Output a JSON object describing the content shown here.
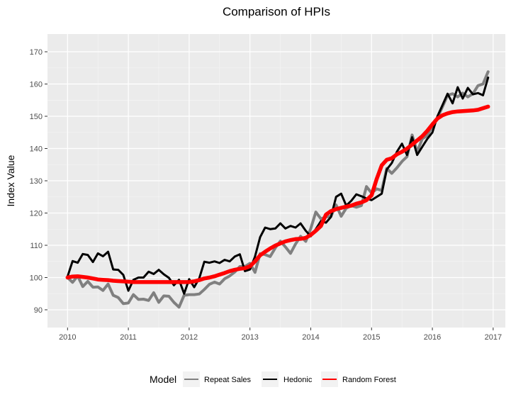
{
  "chart_data": {
    "type": "line",
    "title": "Comparison of HPIs",
    "xlabel": "",
    "ylabel": "Index Value",
    "xlim": [
      2009.67,
      2017.2
    ],
    "ylim": [
      84.5,
      175.5
    ],
    "x_ticks": [
      2010,
      2011,
      2012,
      2013,
      2014,
      2015,
      2016,
      2017
    ],
    "y_ticks": [
      90,
      100,
      110,
      120,
      130,
      140,
      150,
      160,
      170
    ],
    "grid": true,
    "legend": {
      "title": "Model",
      "position": "bottom"
    },
    "series": [
      {
        "name": "Repeat Sales",
        "color": "#808080",
        "x": [
          2010,
          2010.083,
          2010.167,
          2010.25,
          2010.333,
          2010.417,
          2010.5,
          2010.583,
          2010.667,
          2010.75,
          2010.833,
          2010.917,
          2011,
          2011.083,
          2011.167,
          2011.25,
          2011.333,
          2011.417,
          2011.5,
          2011.583,
          2011.667,
          2011.75,
          2011.833,
          2011.917,
          2012,
          2012.083,
          2012.167,
          2012.25,
          2012.333,
          2012.417,
          2012.5,
          2012.583,
          2012.667,
          2012.75,
          2012.833,
          2012.917,
          2013,
          2013.083,
          2013.167,
          2013.25,
          2013.333,
          2013.417,
          2013.5,
          2013.583,
          2013.667,
          2013.75,
          2013.833,
          2013.917,
          2014,
          2014.083,
          2014.167,
          2014.25,
          2014.333,
          2014.417,
          2014.5,
          2014.583,
          2014.667,
          2014.75,
          2014.833,
          2014.917,
          2015,
          2015.083,
          2015.167,
          2015.25,
          2015.333,
          2015.417,
          2015.5,
          2015.583,
          2015.667,
          2015.75,
          2015.833,
          2015.917,
          2016,
          2016.083,
          2016.167,
          2016.25,
          2016.333,
          2016.417,
          2016.5,
          2016.583,
          2016.667,
          2016.75,
          2016.833,
          2016.917
        ],
        "values": [
          100,
          98.5,
          100.5,
          97.2,
          98.8,
          97.0,
          97.1,
          96.0,
          98.0,
          94.5,
          93.8,
          91.9,
          92.1,
          94.7,
          93.2,
          93.3,
          92.9,
          95.3,
          92.3,
          94.3,
          94.2,
          92.3,
          90.8,
          94.5,
          94.7,
          94.7,
          94.9,
          96.3,
          97.9,
          98.6,
          98.0,
          99.6,
          100.5,
          101.7,
          103.4,
          103.4,
          104.4,
          101.6,
          107.4,
          107.1,
          106.5,
          109.2,
          111.3,
          109.5,
          107.5,
          110.4,
          112.8,
          111.2,
          115.2,
          120.3,
          118.2,
          118.8,
          119.0,
          122.5,
          119.0,
          121.5,
          122.3,
          121.8,
          122.3,
          128.2,
          126.2,
          127.5,
          127.0,
          133.8,
          132.3,
          134.0,
          136.0,
          137.5,
          144.2,
          139.0,
          143.0,
          144.0,
          147.0,
          149.5,
          153.0,
          156.5,
          157.0,
          156.0,
          157.2,
          156.0,
          157.0,
          159.5,
          160.0,
          163.8
        ]
      },
      {
        "name": "Hedonic",
        "color": "#000000",
        "x": [
          2010,
          2010.083,
          2010.167,
          2010.25,
          2010.333,
          2010.417,
          2010.5,
          2010.583,
          2010.667,
          2010.75,
          2010.833,
          2010.917,
          2011,
          2011.083,
          2011.167,
          2011.25,
          2011.333,
          2011.417,
          2011.5,
          2011.583,
          2011.667,
          2011.75,
          2011.833,
          2011.917,
          2012,
          2012.083,
          2012.167,
          2012.25,
          2012.333,
          2012.417,
          2012.5,
          2012.583,
          2012.667,
          2012.75,
          2012.833,
          2012.917,
          2013,
          2013.083,
          2013.167,
          2013.25,
          2013.333,
          2013.417,
          2013.5,
          2013.583,
          2013.667,
          2013.75,
          2013.833,
          2013.917,
          2014,
          2014.083,
          2014.167,
          2014.25,
          2014.333,
          2014.417,
          2014.5,
          2014.583,
          2014.667,
          2014.75,
          2014.833,
          2014.917,
          2015,
          2015.083,
          2015.167,
          2015.25,
          2015.333,
          2015.417,
          2015.5,
          2015.583,
          2015.667,
          2015.75,
          2015.833,
          2015.917,
          2016,
          2016.083,
          2016.167,
          2016.25,
          2016.333,
          2016.417,
          2016.5,
          2016.583,
          2016.667,
          2016.75,
          2016.833,
          2016.917
        ],
        "values": [
          100.3,
          105.1,
          104.6,
          107.3,
          107.0,
          104.8,
          107.5,
          106.6,
          108.0,
          102.5,
          102.4,
          100.8,
          95.9,
          99.3,
          100.0,
          100.0,
          101.8,
          101.1,
          102.4,
          101.0,
          99.9,
          97.6,
          99.3,
          95.0,
          99.5,
          97.0,
          99.8,
          104.9,
          104.6,
          105.0,
          104.5,
          105.5,
          105.0,
          106.5,
          107.2,
          102.0,
          102.5,
          106.5,
          112.5,
          115.5,
          115.0,
          115.2,
          116.8,
          115.2,
          116.0,
          115.5,
          116.8,
          114.5,
          112.8,
          115.0,
          117.5,
          117.0,
          118.8,
          125.0,
          126.0,
          122.3,
          123.8,
          125.8,
          125.2,
          124.5,
          124.0,
          125.0,
          126.0,
          133.5,
          135.5,
          139.0,
          141.5,
          138.0,
          143.5,
          138.0,
          140.5,
          143.0,
          145.0,
          150.0,
          153.5,
          157.0,
          154.0,
          159.0,
          155.5,
          158.8,
          156.8,
          157.2,
          156.5,
          162.0
        ]
      },
      {
        "name": "Random Forest",
        "color": "#ff0000",
        "x": [
          2010,
          2010.083,
          2010.167,
          2010.25,
          2010.333,
          2010.417,
          2010.5,
          2010.583,
          2010.667,
          2010.75,
          2010.833,
          2010.917,
          2011,
          2011.083,
          2011.167,
          2011.25,
          2011.333,
          2011.417,
          2011.5,
          2011.583,
          2011.667,
          2011.75,
          2011.833,
          2011.917,
          2012,
          2012.083,
          2012.167,
          2012.25,
          2012.333,
          2012.417,
          2012.5,
          2012.583,
          2012.667,
          2012.75,
          2012.833,
          2012.917,
          2013,
          2013.083,
          2013.167,
          2013.25,
          2013.333,
          2013.417,
          2013.5,
          2013.583,
          2013.667,
          2013.75,
          2013.833,
          2013.917,
          2014,
          2014.083,
          2014.167,
          2014.25,
          2014.333,
          2014.417,
          2014.5,
          2014.583,
          2014.667,
          2014.75,
          2014.833,
          2014.917,
          2015,
          2015.083,
          2015.167,
          2015.25,
          2015.333,
          2015.417,
          2015.5,
          2015.583,
          2015.667,
          2015.75,
          2015.833,
          2015.917,
          2016,
          2016.083,
          2016.167,
          2016.25,
          2016.333,
          2016.417,
          2016.5,
          2016.583,
          2016.667,
          2016.75,
          2016.833,
          2016.917
        ],
        "values": [
          100.0,
          100.3,
          100.4,
          100.2,
          100.0,
          99.7,
          99.4,
          99.3,
          99.2,
          99.0,
          98.9,
          98.8,
          98.7,
          98.6,
          98.6,
          98.6,
          98.6,
          98.6,
          98.6,
          98.6,
          98.6,
          98.6,
          98.6,
          98.6,
          98.6,
          98.8,
          99.2,
          99.7,
          100.0,
          100.4,
          100.9,
          101.4,
          102.0,
          102.4,
          102.7,
          102.9,
          103.5,
          105.0,
          106.9,
          108.0,
          109.0,
          109.9,
          110.6,
          111.2,
          111.6,
          111.9,
          112.0,
          112.3,
          113.2,
          114.5,
          116.0,
          119.5,
          120.6,
          121.2,
          121.6,
          122.0,
          122.3,
          122.9,
          123.3,
          124.0,
          125.5,
          130.5,
          134.8,
          136.5,
          137.0,
          138.2,
          139.0,
          140.0,
          141.2,
          142.5,
          143.8,
          145.5,
          147.5,
          149.3,
          150.3,
          150.9,
          151.3,
          151.5,
          151.6,
          151.7,
          151.8,
          152.0,
          152.5,
          153.0
        ]
      }
    ]
  }
}
